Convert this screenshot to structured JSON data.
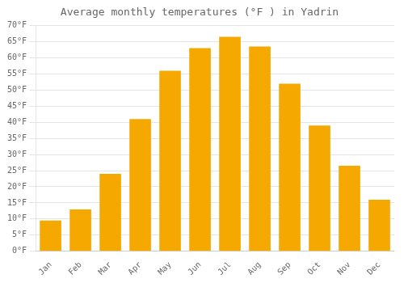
{
  "chart_data": {
    "type": "bar",
    "title": "Average monthly temperatures (°F ) in Yadrin",
    "categories": [
      "Jan",
      "Feb",
      "Mar",
      "Apr",
      "May",
      "Jun",
      "Jul",
      "Aug",
      "Sep",
      "Oct",
      "Nov",
      "Dec"
    ],
    "values": [
      9.5,
      13.0,
      24.0,
      41.0,
      56.0,
      63.0,
      66.5,
      63.5,
      52.0,
      39.0,
      26.5,
      16.0
    ],
    "color": "#F5A800",
    "ylim": [
      0,
      70
    ],
    "yticks": [
      {
        "value": 0,
        "label": "0°F"
      },
      {
        "value": 5,
        "label": "5°F"
      },
      {
        "value": 10,
        "label": "10°F"
      },
      {
        "value": 15,
        "label": "15°F"
      },
      {
        "value": 20,
        "label": "20°F"
      },
      {
        "value": 25,
        "label": "25°F"
      },
      {
        "value": 30,
        "label": "30°F"
      },
      {
        "value": 35,
        "label": "35°F"
      },
      {
        "value": 40,
        "label": "40°F"
      },
      {
        "value": 45,
        "label": "45°F"
      },
      {
        "value": 50,
        "label": "50°F"
      },
      {
        "value": 55,
        "label": "55°F"
      },
      {
        "value": 60,
        "label": "60°F"
      },
      {
        "value": 65,
        "label": "65°F"
      },
      {
        "value": 70,
        "label": "70°F"
      }
    ],
    "grid": true
  }
}
